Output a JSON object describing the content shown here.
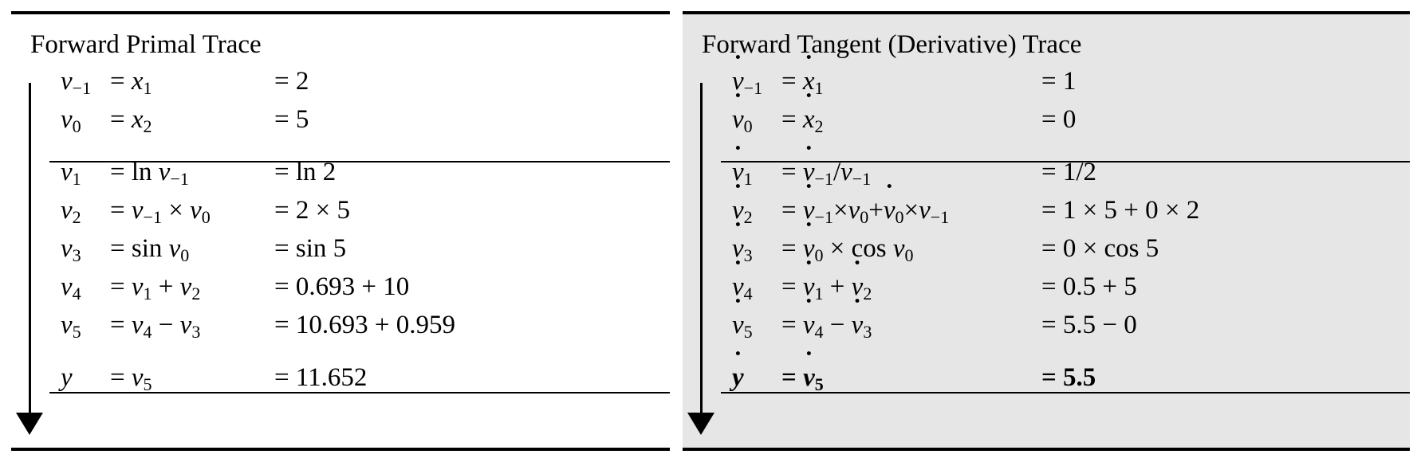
{
  "primal": {
    "title": "Forward Primal Trace",
    "rows": [
      [
        {
          "t": "v",
          "i": true,
          "s": "−1"
        },
        {
          "t": "= "
        },
        {
          "t": "x",
          "i": true,
          "s": "1"
        },
        "|",
        {
          "t": "= 2"
        }
      ],
      [
        {
          "t": "v",
          "i": true,
          "s": "0"
        },
        {
          "t": "= "
        },
        {
          "t": "x",
          "i": true,
          "s": "2"
        },
        "|",
        {
          "t": "= 5"
        }
      ],
      [
        {
          "t": "v",
          "i": true,
          "s": "1"
        },
        {
          "t": "= ln "
        },
        {
          "t": "v",
          "i": true,
          "s": "−1"
        },
        "|",
        {
          "t": "= ln 2"
        }
      ],
      [
        {
          "t": "v",
          "i": true,
          "s": "2"
        },
        {
          "t": "= "
        },
        {
          "t": "v",
          "i": true,
          "s": "−1"
        },
        {
          "t": " × "
        },
        {
          "t": "v",
          "i": true,
          "s": "0"
        },
        "|",
        {
          "t": "= 2 × 5"
        }
      ],
      [
        {
          "t": "v",
          "i": true,
          "s": "3"
        },
        {
          "t": "= sin "
        },
        {
          "t": "v",
          "i": true,
          "s": "0"
        },
        "|",
        {
          "t": "= sin 5"
        }
      ],
      [
        {
          "t": "v",
          "i": true,
          "s": "4"
        },
        {
          "t": "= "
        },
        {
          "t": "v",
          "i": true,
          "s": "1"
        },
        {
          "t": " + "
        },
        {
          "t": "v",
          "i": true,
          "s": "2"
        },
        "|",
        {
          "t": "= 0.693 + 10"
        }
      ],
      [
        {
          "t": "v",
          "i": true,
          "s": "5"
        },
        {
          "t": "= "
        },
        {
          "t": "v",
          "i": true,
          "s": "4"
        },
        {
          "t": " − "
        },
        {
          "t": "v",
          "i": true,
          "s": "3"
        },
        "|",
        {
          "t": "= 10.693 + 0.959"
        }
      ],
      [
        {
          "t": "y",
          "i": true
        },
        {
          "t": "= "
        },
        {
          "t": "v",
          "i": true,
          "s": "5"
        },
        "|",
        {
          "t": "= 11.652"
        }
      ]
    ]
  },
  "tangent": {
    "title": "Forward Tangent (Derivative) Trace",
    "rows": [
      [
        {
          "t": "v",
          "i": true,
          "d": true,
          "s": "−1"
        },
        {
          "t": "= "
        },
        {
          "t": "x",
          "i": true,
          "d": true,
          "s": "1"
        },
        "|",
        {
          "t": "= 1"
        }
      ],
      [
        {
          "t": "v",
          "i": true,
          "d": true,
          "s": "0"
        },
        {
          "t": "= "
        },
        {
          "t": "x",
          "i": true,
          "d": true,
          "s": "2"
        },
        "|",
        {
          "t": "= 0"
        }
      ],
      [
        {
          "t": "v",
          "i": true,
          "d": true,
          "s": "1"
        },
        {
          "t": "= "
        },
        {
          "t": "v",
          "i": true,
          "d": true,
          "s": "−1"
        },
        {
          "t": "/"
        },
        {
          "t": "v",
          "i": true,
          "s": "−1"
        },
        "|",
        {
          "t": "= 1/2"
        }
      ],
      [
        {
          "t": "v",
          "i": true,
          "d": true,
          "s": "2"
        },
        {
          "t": "= "
        },
        {
          "t": "v",
          "i": true,
          "d": true,
          "s": "−1"
        },
        {
          "t": "×"
        },
        {
          "t": "v",
          "i": true,
          "s": "0"
        },
        {
          "t": "+"
        },
        {
          "t": "v",
          "i": true,
          "d": true,
          "s": "0"
        },
        {
          "t": "×"
        },
        {
          "t": "v",
          "i": true,
          "s": "−1"
        },
        "|",
        {
          "t": "= 1 × 5 + 0 × 2"
        }
      ],
      [
        {
          "t": "v",
          "i": true,
          "d": true,
          "s": "3"
        },
        {
          "t": "= "
        },
        {
          "t": "v",
          "i": true,
          "d": true,
          "s": "0"
        },
        {
          "t": " × cos "
        },
        {
          "t": "v",
          "i": true,
          "s": "0"
        },
        "|",
        {
          "t": "= 0 × cos 5"
        }
      ],
      [
        {
          "t": "v",
          "i": true,
          "d": true,
          "s": "4"
        },
        {
          "t": "= "
        },
        {
          "t": "v",
          "i": true,
          "d": true,
          "s": "1"
        },
        {
          "t": " + "
        },
        {
          "t": "v",
          "i": true,
          "d": true,
          "s": "2"
        },
        "|",
        {
          "t": "= 0.5 + 5"
        }
      ],
      [
        {
          "t": "v",
          "i": true,
          "d": true,
          "s": "5"
        },
        {
          "t": "= "
        },
        {
          "t": "v",
          "i": true,
          "d": true,
          "s": "4"
        },
        {
          "t": " − "
        },
        {
          "t": "v",
          "i": true,
          "d": true,
          "s": "3"
        },
        "|",
        {
          "t": "= 5.5 − 0"
        }
      ],
      [
        {
          "t": "y",
          "i": true,
          "d": true
        },
        {
          "t": "= "
        },
        {
          "t": "v",
          "i": true,
          "d": true,
          "s": "5"
        },
        "|",
        {
          "t": "= 5.5"
        }
      ]
    ]
  }
}
